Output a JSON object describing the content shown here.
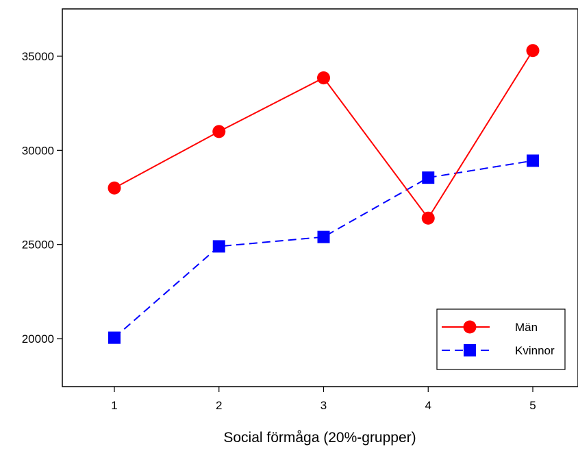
{
  "chart_data": {
    "type": "line",
    "title": "",
    "xlabel": "Social förmåga (20%-grupper)",
    "ylabel": "",
    "x": [
      1,
      2,
      3,
      4,
      5
    ],
    "x_tick_labels": [
      "1",
      "2",
      "3",
      "4",
      "5"
    ],
    "xlim": [
      0.5,
      5.5
    ],
    "ylim": [
      17500,
      37500
    ],
    "y_ticks": [
      20000,
      25000,
      30000,
      35000
    ],
    "y_tick_labels": [
      "20000",
      "25000",
      "30000",
      "35000"
    ],
    "grid": false,
    "legend_position": "bottom-right",
    "series": [
      {
        "name": "Män",
        "values": [
          28000,
          31000,
          33850,
          26400,
          35300
        ],
        "color": "#ff0000",
        "line_style": "solid",
        "marker": "circle"
      },
      {
        "name": "Kvinnor",
        "values": [
          20050,
          24900,
          25400,
          28550,
          29450
        ],
        "color": "#0000ff",
        "line_style": "dashed",
        "marker": "square"
      }
    ]
  }
}
